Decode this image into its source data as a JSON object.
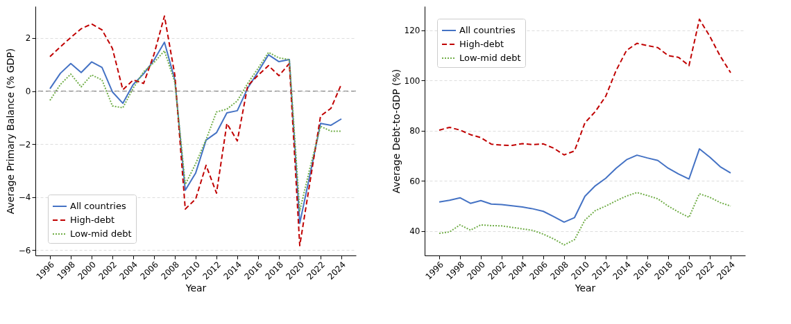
{
  "chart_data": [
    {
      "type": "line",
      "xlabel": "Year",
      "ylabel": "Average Primary Balance (% GDP)",
      "x": [
        1996,
        1997,
        1998,
        1999,
        2000,
        2001,
        2002,
        2003,
        2004,
        2005,
        2006,
        2007,
        2008,
        2009,
        2010,
        2011,
        2012,
        2013,
        2014,
        2015,
        2016,
        2017,
        2018,
        2019,
        2020,
        2021,
        2022,
        2023,
        2024
      ],
      "series": [
        {
          "name": "All countries",
          "color": "#4472c4",
          "line_style": "solid",
          "values": [
            0.09,
            0.67,
            1.04,
            0.7,
            1.1,
            0.89,
            -0.03,
            -0.46,
            0.25,
            0.65,
            1.17,
            1.84,
            0.42,
            -3.74,
            -3.09,
            -1.85,
            -1.57,
            -0.82,
            -0.74,
            0.11,
            0.73,
            1.37,
            1.11,
            1.19,
            -4.99,
            -3.12,
            -1.22,
            -1.29,
            -1.05
          ]
        },
        {
          "name": "High-debt",
          "color": "#c00000",
          "line_style": "dashed",
          "values": [
            1.3,
            1.67,
            2.02,
            2.35,
            2.53,
            2.31,
            1.61,
            0.05,
            0.42,
            0.29,
            1.39,
            2.83,
            0.6,
            -4.45,
            -4.07,
            -2.8,
            -3.85,
            -1.22,
            -1.88,
            0.2,
            0.6,
            0.96,
            0.58,
            1.04,
            -5.83,
            -3.39,
            -0.94,
            -0.65,
            0.26
          ]
        },
        {
          "name": "Low-mid debt",
          "color": "#70ad47",
          "line_style": "dotted",
          "values": [
            -0.35,
            0.25,
            0.64,
            0.16,
            0.61,
            0.42,
            -0.56,
            -0.63,
            0.11,
            0.73,
            1.08,
            1.52,
            0.33,
            -3.52,
            -2.74,
            -1.83,
            -0.79,
            -0.68,
            -0.37,
            0.29,
            0.86,
            1.46,
            1.25,
            1.19,
            -4.52,
            -2.87,
            -1.33,
            -1.51,
            -1.51
          ]
        }
      ],
      "xlim": [
        1994.6,
        2025.4
      ],
      "xticks": [
        1996,
        1998,
        2000,
        2002,
        2004,
        2006,
        2008,
        2010,
        2012,
        2014,
        2016,
        2018,
        2020,
        2022,
        2024
      ],
      "ylim": [
        -6.2,
        3.2
      ],
      "yticks": [
        -6,
        -4,
        -2,
        0,
        2
      ],
      "ref_lines": [
        {
          "axis": "y",
          "value": 0,
          "color": "#808080",
          "line_style": "dashed"
        }
      ],
      "grid": "y",
      "legend": "bottom left"
    },
    {
      "type": "line",
      "xlabel": "Year",
      "ylabel": "Average Debt-to-GDP (%)",
      "x": [
        1996,
        1997,
        1998,
        1999,
        2000,
        2001,
        2002,
        2003,
        2004,
        2005,
        2006,
        2007,
        2008,
        2009,
        2010,
        2011,
        2012,
        2013,
        2014,
        2015,
        2016,
        2017,
        2018,
        2019,
        2020,
        2021,
        2022,
        2023,
        2024
      ],
      "series": [
        {
          "name": "All countries",
          "color": "#4472c4",
          "line_style": "solid",
          "values": [
            51.5,
            52.2,
            53.2,
            51.0,
            52.1,
            50.7,
            50.5,
            50.0,
            49.5,
            48.8,
            47.8,
            45.7,
            43.5,
            45.3,
            53.8,
            58.0,
            61.0,
            65.0,
            68.4,
            70.2,
            69.1,
            68.1,
            65.0,
            62.7,
            60.7,
            72.7,
            69.4,
            65.6,
            63.1
          ]
        },
        {
          "name": "High-debt",
          "color": "#c00000",
          "line_style": "dashed",
          "values": [
            80.2,
            81.3,
            80.2,
            78.4,
            77.2,
            74.6,
            74.2,
            74.1,
            74.8,
            74.4,
            74.7,
            73.0,
            70.3,
            71.9,
            83.1,
            87.6,
            93.7,
            104.0,
            112.0,
            114.8,
            113.9,
            113.1,
            109.9,
            109.2,
            105.9,
            124.4,
            117.6,
            109.7,
            103.1
          ]
        },
        {
          "name": "Low-mid debt",
          "color": "#70ad47",
          "line_style": "dotted",
          "values": [
            39.0,
            39.6,
            42.4,
            40.3,
            42.4,
            42.1,
            42.0,
            41.4,
            40.8,
            40.2,
            38.7,
            36.8,
            34.4,
            36.5,
            44.3,
            48.1,
            49.9,
            52.0,
            53.9,
            55.3,
            54.1,
            52.8,
            49.9,
            47.5,
            45.4,
            54.8,
            53.4,
            51.3,
            49.9
          ]
        }
      ],
      "xlim": [
        1994.6,
        2025.4
      ],
      "xticks": [
        1996,
        1998,
        2000,
        2002,
        2004,
        2006,
        2008,
        2010,
        2012,
        2014,
        2016,
        2018,
        2020,
        2022,
        2024
      ],
      "ylim": [
        30.2,
        129.6
      ],
      "yticks": [
        40,
        60,
        80,
        100,
        120
      ],
      "grid": "y",
      "legend": "top left"
    }
  ]
}
